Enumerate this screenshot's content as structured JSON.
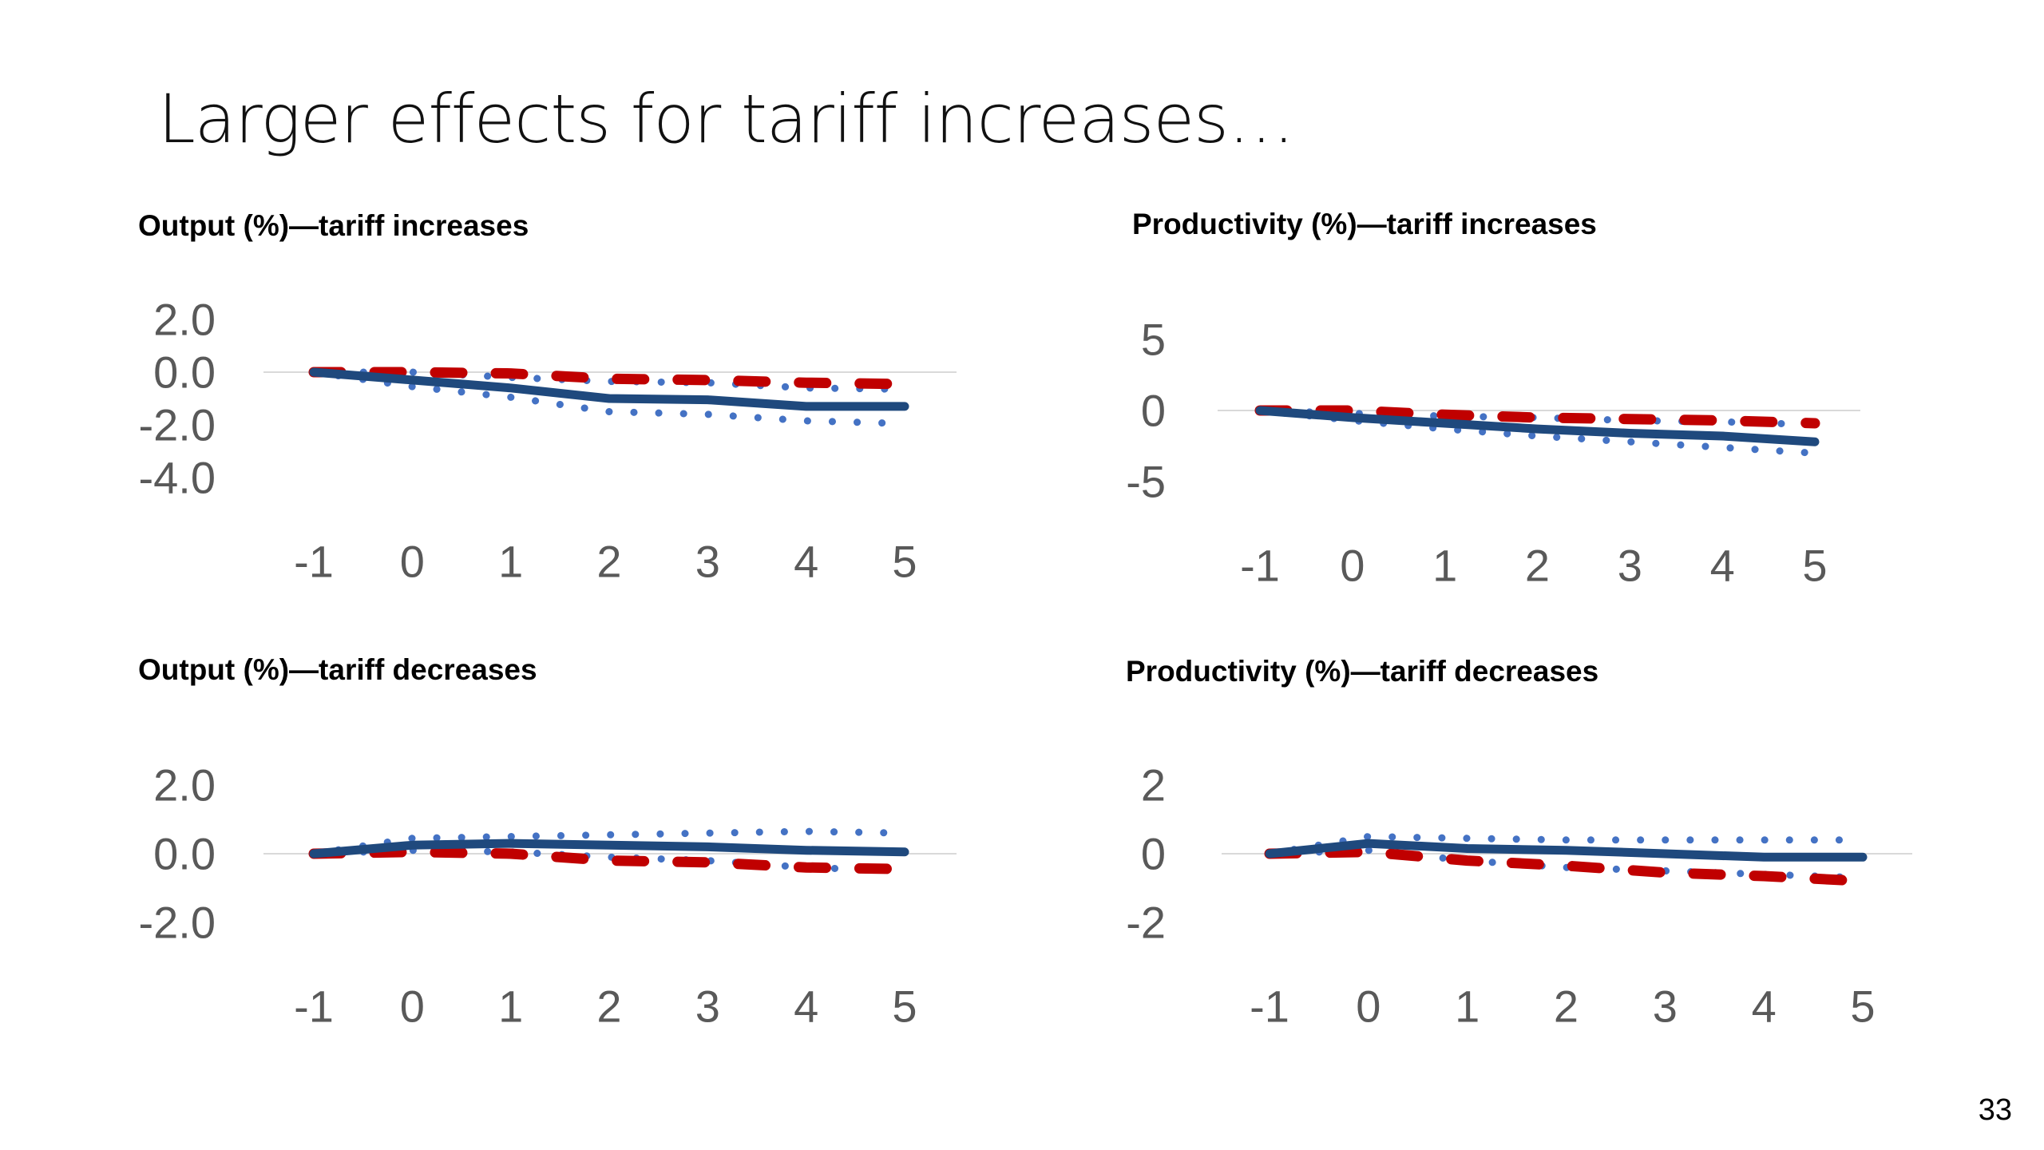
{
  "slide": {
    "title": "Larger effects for tariff increases…",
    "page_number": "33"
  },
  "colors": {
    "estimate": "#1F497D",
    "confidence_band": "#4472C4",
    "comparison": "#C00000",
    "axis": "#D9D9D9",
    "tick_text": "#595959"
  },
  "chart_data": [
    {
      "type": "line",
      "title": "Output (%)—tariff increases",
      "xlabel": "",
      "ylabel": "",
      "x": [
        -1,
        0,
        1,
        2,
        3,
        4,
        5
      ],
      "x_tick_labels": [
        "-1",
        "0",
        "1",
        "2",
        "3",
        "4",
        "5"
      ],
      "y_tick_values": [
        2.0,
        0.0,
        -2.0,
        -4.0
      ],
      "y_tick_labels": [
        "2.0",
        "0.0",
        "-2.0",
        "-4.0"
      ],
      "ylim": [
        -4.0,
        2.0
      ],
      "grid": false,
      "legend": "none",
      "series": [
        {
          "style": "solid",
          "color": "#1F497D",
          "values": [
            0.0,
            -0.3,
            -0.6,
            -1.0,
            -1.05,
            -1.3,
            -1.3
          ]
        },
        {
          "style": "dotted-upper",
          "color": "#4472C4",
          "values": [
            0.0,
            0.0,
            -0.2,
            -0.35,
            -0.4,
            -0.6,
            -0.65
          ]
        },
        {
          "style": "dotted-lower",
          "color": "#4472C4",
          "values": [
            0.0,
            -0.55,
            -0.95,
            -1.5,
            -1.6,
            -1.85,
            -1.95
          ]
        },
        {
          "style": "dashed",
          "color": "#C00000",
          "values": [
            0.0,
            0.0,
            -0.05,
            -0.25,
            -0.3,
            -0.4,
            -0.45
          ]
        }
      ]
    },
    {
      "type": "line",
      "title": "Productivity (%)—tariff increases",
      "xlabel": "",
      "ylabel": "",
      "x": [
        -1,
        0,
        1,
        2,
        3,
        4,
        5
      ],
      "x_tick_labels": [
        "-1",
        "0",
        "1",
        "2",
        "3",
        "4",
        "5"
      ],
      "y_tick_values": [
        5,
        0,
        -5
      ],
      "y_tick_labels": [
        "5",
        "0",
        "-5"
      ],
      "ylim": [
        -5,
        5
      ],
      "grid": false,
      "legend": "none",
      "series": [
        {
          "style": "solid",
          "color": "#1F497D",
          "values": [
            0.0,
            -0.5,
            -0.9,
            -1.3,
            -1.6,
            -1.8,
            -2.2
          ]
        },
        {
          "style": "dotted-upper",
          "color": "#4472C4",
          "values": [
            0.0,
            -0.2,
            -0.4,
            -0.5,
            -0.7,
            -0.8,
            -1.0
          ]
        },
        {
          "style": "dotted-lower",
          "color": "#4472C4",
          "values": [
            0.0,
            -0.7,
            -1.3,
            -1.8,
            -2.2,
            -2.6,
            -3.0
          ]
        },
        {
          "style": "dashed",
          "color": "#C00000",
          "values": [
            0.0,
            0.0,
            -0.3,
            -0.5,
            -0.6,
            -0.7,
            -0.9
          ]
        }
      ]
    },
    {
      "type": "line",
      "title": "Output (%)—tariff decreases",
      "xlabel": "",
      "ylabel": "",
      "x": [
        -1,
        0,
        1,
        2,
        3,
        4,
        5
      ],
      "x_tick_labels": [
        "-1",
        "0",
        "1",
        "2",
        "3",
        "4",
        "5"
      ],
      "y_tick_values": [
        2.0,
        0.0,
        -2.0
      ],
      "y_tick_labels": [
        "2.0",
        "0.0",
        "-2.0"
      ],
      "ylim": [
        -2.0,
        2.0
      ],
      "grid": false,
      "legend": "none",
      "series": [
        {
          "style": "solid",
          "color": "#1F497D",
          "values": [
            0.0,
            0.25,
            0.3,
            0.25,
            0.2,
            0.1,
            0.05
          ]
        },
        {
          "style": "dotted-upper",
          "color": "#4472C4",
          "values": [
            0.0,
            0.45,
            0.5,
            0.55,
            0.6,
            0.65,
            0.6
          ]
        },
        {
          "style": "dotted-lower",
          "color": "#4472C4",
          "values": [
            0.0,
            0.1,
            0.05,
            -0.1,
            -0.2,
            -0.4,
            -0.5
          ]
        },
        {
          "style": "dashed",
          "color": "#C00000",
          "values": [
            0.0,
            0.05,
            0.0,
            -0.2,
            -0.25,
            -0.4,
            -0.45
          ]
        }
      ]
    },
    {
      "type": "line",
      "title": "Productivity (%)—tariff decreases",
      "xlabel": "",
      "ylabel": "",
      "x": [
        -1,
        0,
        1,
        2,
        3,
        4,
        5
      ],
      "x_tick_labels": [
        "-1",
        "0",
        "1",
        "2",
        "3",
        "4",
        "5"
      ],
      "y_tick_values": [
        2,
        0,
        -2
      ],
      "y_tick_labels": [
        "2",
        "0",
        "-2"
      ],
      "ylim": [
        -2,
        2
      ],
      "grid": false,
      "legend": "none",
      "series": [
        {
          "style": "solid",
          "color": "#1F497D",
          "values": [
            0.0,
            0.3,
            0.15,
            0.1,
            0.0,
            -0.1,
            -0.1
          ]
        },
        {
          "style": "dotted-upper",
          "color": "#4472C4",
          "values": [
            0.0,
            0.5,
            0.45,
            0.4,
            0.4,
            0.4,
            0.4
          ]
        },
        {
          "style": "dotted-lower",
          "color": "#4472C4",
          "values": [
            0.0,
            0.1,
            -0.2,
            -0.4,
            -0.5,
            -0.6,
            -0.7
          ]
        },
        {
          "style": "dashed",
          "color": "#C00000",
          "values": [
            0.0,
            0.05,
            -0.2,
            -0.35,
            -0.55,
            -0.65,
            -0.8
          ]
        }
      ]
    }
  ]
}
